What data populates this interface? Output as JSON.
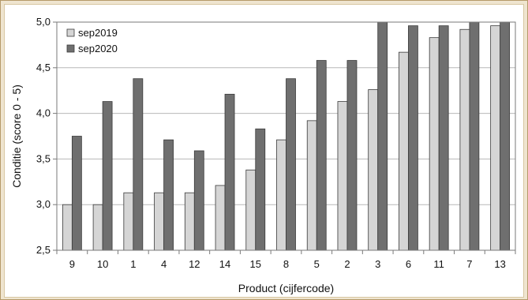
{
  "chart_data": {
    "type": "bar",
    "xlabel": "Product (cijfercode)",
    "ylabel": "Conditie (score 0 - 5)",
    "categories": [
      "9",
      "10",
      "1",
      "4",
      "12",
      "14",
      "15",
      "8",
      "5",
      "2",
      "3",
      "6",
      "11",
      "7",
      "13"
    ],
    "series": [
      {
        "name": "sep2019",
        "color": "#d5d5d5",
        "values": [
          3.0,
          3.0,
          3.13,
          3.13,
          3.13,
          3.21,
          3.38,
          3.71,
          3.92,
          4.13,
          4.26,
          4.67,
          4.83,
          4.92,
          4.96
        ]
      },
      {
        "name": "sep2020",
        "color": "#6f6f6f",
        "values": [
          3.75,
          4.13,
          4.38,
          3.71,
          3.59,
          4.21,
          3.83,
          4.38,
          4.58,
          4.58,
          5.0,
          4.96,
          4.96,
          5.0,
          5.0
        ]
      }
    ],
    "ylim": [
      2.5,
      5.0
    ],
    "yticks": [
      "2,5",
      "3,0",
      "3,5",
      "4,0",
      "4,5",
      "5,0"
    ],
    "grid": true,
    "legend_position": "top-left"
  }
}
